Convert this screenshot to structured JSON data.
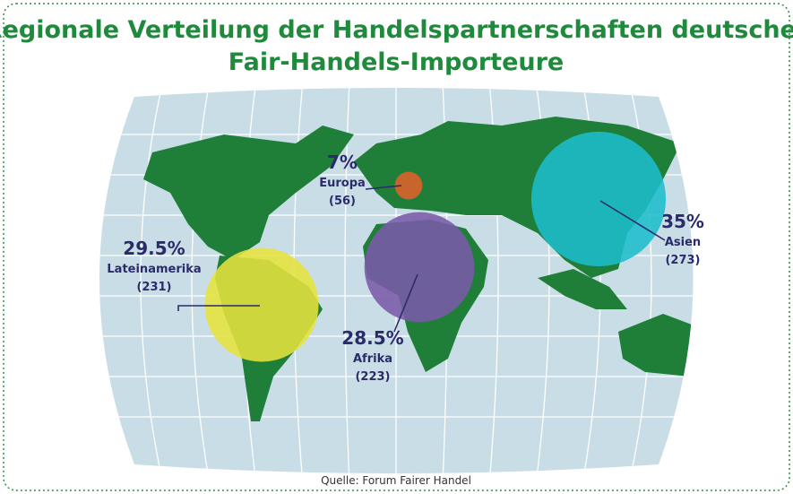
{
  "title": [
    "Regionale Verteilung der Handelspartnerschaften deutscher",
    "Fair-Handels-Importeure"
  ],
  "source": "Quelle: Forum Fairer Handel",
  "regions": [
    {
      "name": "Europa",
      "value": 7,
      "value_label": "7%",
      "count": 56,
      "count_label": "(56)",
      "color": "#e0622a"
    },
    {
      "name": "Lateinamerika",
      "value": 29.5,
      "value_label": "29.5%",
      "count": 231,
      "count_label": "(231)",
      "color": "#e6e23c"
    },
    {
      "name": "Afrika",
      "value": 28.5,
      "value_label": "28.5%",
      "count": 223,
      "count_label": "(223)",
      "color": "#7a5aa8"
    },
    {
      "name": "Asien",
      "value": 35,
      "value_label": "35%",
      "count": 273,
      "count_label": "(273)",
      "color": "#1cbdcc"
    }
  ]
}
